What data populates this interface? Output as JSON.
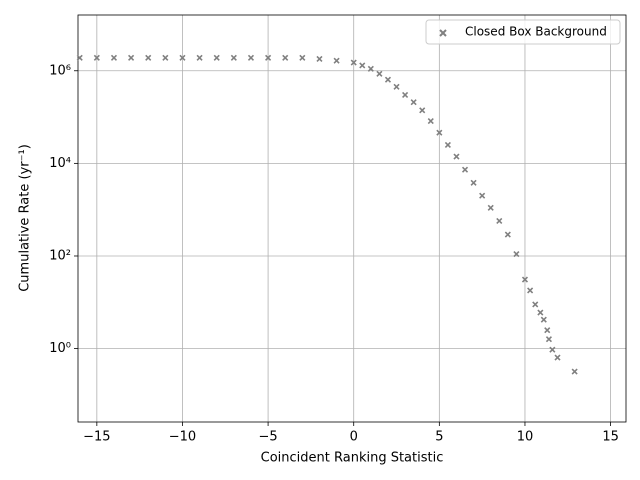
{
  "chart_data": {
    "type": "scatter",
    "xlabel": "Coincident Ranking Statistic",
    "ylabel": "Cumulative Rate (yr⁻¹)",
    "xlim": [
      -16.1,
      15.9
    ],
    "ylim": [
      0.026,
      16000000
    ],
    "log_y": true,
    "grid": true,
    "legend": "upper right",
    "xticks": [
      {
        "value": -15,
        "label": "−15"
      },
      {
        "value": -10,
        "label": "−10"
      },
      {
        "value": -5,
        "label": "−5"
      },
      0,
      5,
      10,
      15
    ],
    "yticks": [
      {
        "value": 1,
        "label": "10⁰"
      },
      {
        "value": 100,
        "label": "10²"
      },
      {
        "value": 10000,
        "label": "10⁴"
      },
      {
        "value": 1000000,
        "label": "10⁶"
      }
    ],
    "series": [
      {
        "name": "Closed Box Background",
        "color": "#808080",
        "x": [
          -16,
          -15,
          -14,
          -13,
          -12,
          -11,
          -10,
          -9,
          -8,
          -7,
          -6,
          -5,
          -4,
          -3,
          -2,
          -1,
          0,
          0.5,
          1,
          1.5,
          2,
          2.5,
          3,
          3.5,
          4,
          4.5,
          5,
          5.5,
          6,
          6.5,
          7,
          7.5,
          8,
          8.5,
          9,
          9.5,
          10,
          10.3,
          10.6,
          10.9,
          11.1,
          11.3,
          11.4,
          11.6,
          11.9,
          12.9
        ],
        "values": [
          1900000,
          1900000,
          1900000,
          1900000,
          1900000,
          1900000,
          1900000,
          1900000,
          1900000,
          1900000,
          1900000,
          1900000,
          1900000,
          1900000,
          1800000,
          1650000,
          1500000,
          1300000,
          1100000,
          860000,
          640000,
          450000,
          300000,
          210000,
          140000,
          82000,
          46000,
          25000,
          14000,
          7300,
          3800,
          2000,
          1100,
          570,
          290,
          110,
          31,
          18,
          9,
          6,
          4.2,
          2.5,
          1.6,
          0.95,
          0.64,
          0.32
        ]
      }
    ]
  }
}
